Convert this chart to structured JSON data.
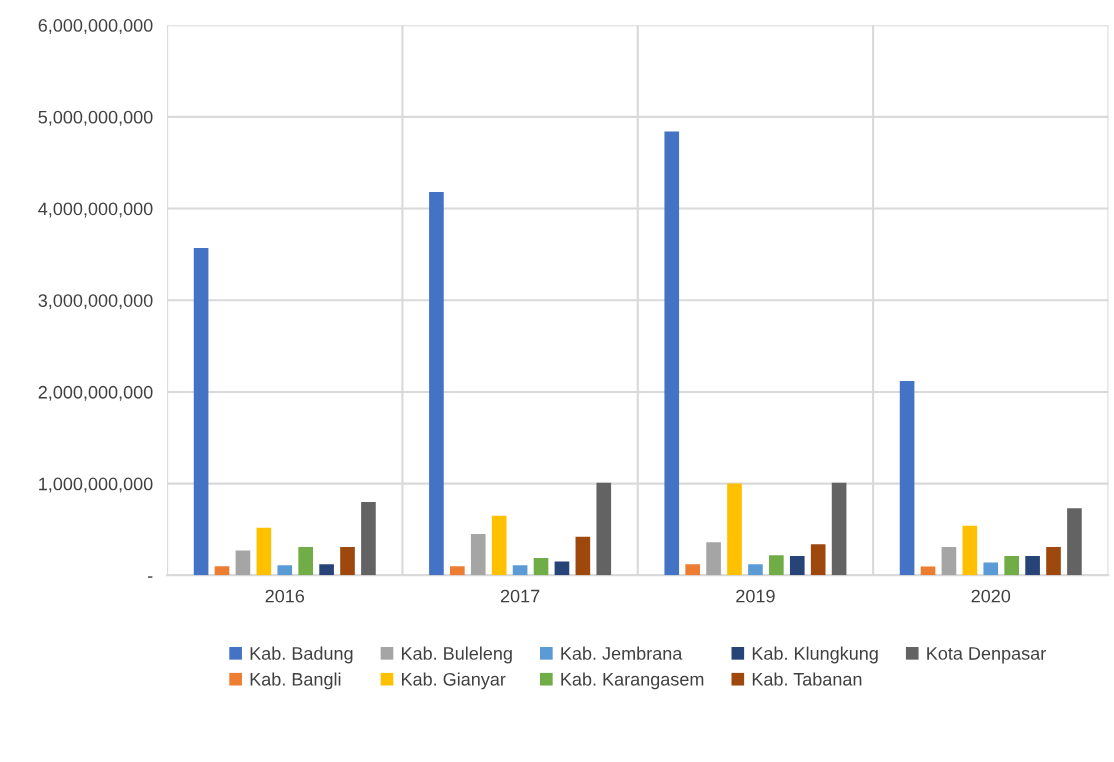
{
  "chart_data": {
    "type": "bar",
    "categories": [
      "2016",
      "2017",
      "2019",
      "2020"
    ],
    "series": [
      {
        "name": "Kab. Badung",
        "color": "#4472c4",
        "values": [
          3570000000,
          4180000000,
          4840000000,
          2120000000
        ]
      },
      {
        "name": "Kab. Bangli",
        "color": "#ed7d31",
        "values": [
          100000000,
          100000000,
          120000000,
          95000000
        ]
      },
      {
        "name": "Kab. Buleleng",
        "color": "#a5a5a5",
        "values": [
          270000000,
          450000000,
          360000000,
          310000000
        ]
      },
      {
        "name": "Kab. Gianyar",
        "color": "#ffc000",
        "values": [
          520000000,
          650000000,
          1000000000,
          540000000
        ]
      },
      {
        "name": "Kab. Jembrana",
        "color": "#5b9bd5",
        "values": [
          110000000,
          110000000,
          120000000,
          140000000
        ]
      },
      {
        "name": "Kab. Karangasem",
        "color": "#70ad47",
        "values": [
          310000000,
          190000000,
          220000000,
          210000000
        ]
      },
      {
        "name": "Kab. Klungkung",
        "color": "#264478",
        "values": [
          120000000,
          150000000,
          210000000,
          210000000
        ]
      },
      {
        "name": "Kab. Tabanan",
        "color": "#9e480e",
        "values": [
          310000000,
          420000000,
          340000000,
          310000000
        ]
      },
      {
        "name": "Kota Denpasar",
        "color": "#636363",
        "values": [
          800000000,
          1010000000,
          1010000000,
          730000000
        ]
      }
    ],
    "ylim": [
      0,
      6000000000
    ],
    "yticks": [
      {
        "value": 0,
        "label": "-"
      },
      {
        "value": 1000000000,
        "label": "1,000,000,000"
      },
      {
        "value": 2000000000,
        "label": "2,000,000,000"
      },
      {
        "value": 3000000000,
        "label": "3,000,000,000"
      },
      {
        "value": 4000000000,
        "label": "4,000,000,000"
      },
      {
        "value": 5000000000,
        "label": "5,000,000,000"
      },
      {
        "value": 6000000000,
        "label": "6,000,000,000"
      }
    ],
    "grid": true,
    "legend": "bottom"
  }
}
